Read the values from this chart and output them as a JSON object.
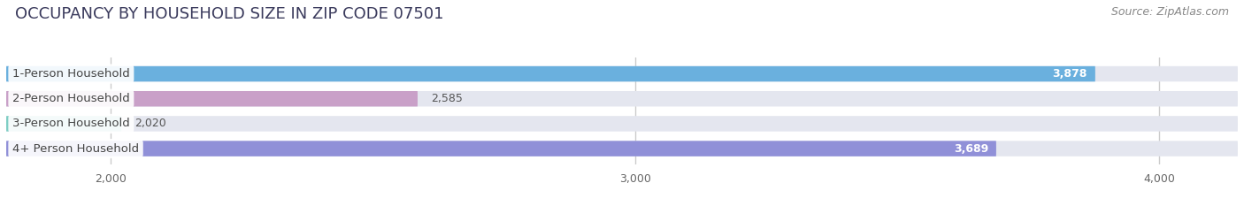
{
  "title": "OCCUPANCY BY HOUSEHOLD SIZE IN ZIP CODE 07501",
  "source": "Source: ZipAtlas.com",
  "categories": [
    "1-Person Household",
    "2-Person Household",
    "3-Person Household",
    "4+ Person Household"
  ],
  "values": [
    3878,
    2585,
    2020,
    3689
  ],
  "bar_colors": [
    "#6ab0de",
    "#c9a0c8",
    "#7ecec4",
    "#9090d8"
  ],
  "bar_bg_color": "#e4e6ef",
  "xlim": [
    1800,
    4150
  ],
  "xticks": [
    2000,
    3000,
    4000
  ],
  "xticklabels": [
    "2,000",
    "3,000",
    "4,000"
  ],
  "value_labels": [
    "3,878",
    "2,585",
    "2,020",
    "3,689"
  ],
  "label_inside": [
    true,
    false,
    false,
    true
  ],
  "fig_bg_color": "#ffffff",
  "bar_height": 0.62,
  "title_fontsize": 13,
  "source_fontsize": 9,
  "tick_fontsize": 9,
  "label_fontsize": 9,
  "category_fontsize": 9.5,
  "title_color": "#3a3a5c",
  "source_color": "#888888",
  "category_label_color": "#444444",
  "grid_color": "#cccccc"
}
